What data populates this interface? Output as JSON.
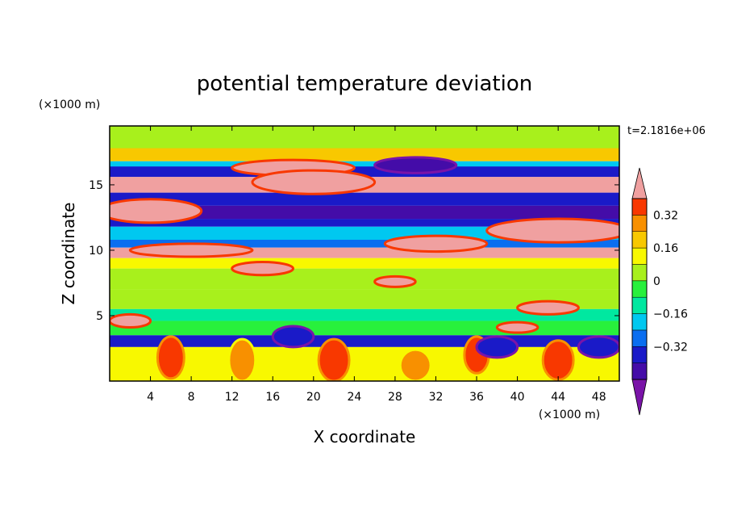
{
  "chart_data": {
    "type": "heatmap",
    "title": "potential temperature deviation",
    "xlabel": "X coordinate",
    "ylabel": "Z coordinate",
    "x_unit": "(×1000 m)",
    "y_unit": "(×1000 m)",
    "time_label": "t=2.1816e+06",
    "xlim": [
      0,
      50
    ],
    "ylim": [
      0,
      19.5
    ],
    "x_ticks": [
      4,
      8,
      12,
      16,
      20,
      24,
      28,
      32,
      36,
      40,
      44,
      48
    ],
    "y_ticks": [
      5,
      10,
      15
    ],
    "colorbar": {
      "levels": [
        -0.48,
        -0.4,
        -0.32,
        -0.24,
        -0.16,
        -0.08,
        0,
        0.08,
        0.16,
        0.24,
        0.32,
        0.4
      ],
      "tick_labels": [
        "0.32",
        "0.16",
        "0",
        "−0.16",
        "−0.32"
      ],
      "tick_values": [
        0.32,
        0.16,
        0,
        -0.16,
        -0.32
      ],
      "colors": [
        "#7a14a8",
        "#440ca8",
        "#1a1ac8",
        "#0a6ef0",
        "#00c8f0",
        "#00e8a0",
        "#28f03c",
        "#a8f01c",
        "#f8f800",
        "#f8c800",
        "#f89000",
        "#f83800",
        "#f0a0a0"
      ],
      "extend": "both"
    },
    "bands": [
      {
        "z": [
          17.5,
          19.5
        ],
        "value": 0.04
      },
      {
        "z": [
          16.8,
          17.8
        ],
        "value": 0.16
      },
      {
        "z": [
          16.0,
          16.8
        ],
        "value": -0.24
      },
      {
        "z": [
          15.6,
          16.4
        ],
        "value": -0.4
      },
      {
        "z": [
          14.4,
          15.6
        ],
        "value": 0.44
      },
      {
        "z": [
          13.4,
          14.4
        ],
        "value": -0.36
      },
      {
        "z": [
          12.4,
          13.4
        ],
        "value": -0.44
      },
      {
        "z": [
          11.8,
          12.4
        ],
        "value": -0.36
      },
      {
        "z": [
          10.8,
          11.8
        ],
        "value": -0.24
      },
      {
        "z": [
          10.2,
          10.8
        ],
        "value": -0.32
      },
      {
        "z": [
          9.4,
          10.2
        ],
        "value": 0.44
      },
      {
        "z": [
          8.6,
          9.4
        ],
        "value": 0.08
      },
      {
        "z": [
          7.0,
          8.6
        ],
        "value": 0.04
      },
      {
        "z": [
          5.5,
          7.0
        ],
        "value": 0.0
      },
      {
        "z": [
          4.6,
          5.5
        ],
        "value": -0.12
      },
      {
        "z": [
          3.5,
          4.6
        ],
        "value": -0.04
      },
      {
        "z": [
          2.6,
          3.5
        ],
        "value": -0.36
      },
      {
        "z": [
          0,
          2.6
        ],
        "value": 0.08
      }
    ],
    "blobs": [
      {
        "x": 18,
        "z": 16.3,
        "rx": 6,
        "rz": 0.6,
        "value": 0.44
      },
      {
        "x": 30,
        "z": 16.5,
        "rx": 4,
        "rz": 0.6,
        "value": -0.44
      },
      {
        "x": 20,
        "z": 15.2,
        "rx": 6,
        "rz": 0.9,
        "value": 0.44
      },
      {
        "x": 4,
        "z": 13.0,
        "rx": 5,
        "rz": 0.9,
        "value": 0.44
      },
      {
        "x": 44,
        "z": 11.5,
        "rx": 7,
        "rz": 0.9,
        "value": 0.44
      },
      {
        "x": 32,
        "z": 10.5,
        "rx": 5,
        "rz": 0.6,
        "value": 0.44
      },
      {
        "x": 8,
        "z": 10.0,
        "rx": 6,
        "rz": 0.5,
        "value": 0.44
      },
      {
        "x": 15,
        "z": 8.6,
        "rx": 3,
        "rz": 0.5,
        "value": 0.44
      },
      {
        "x": 28,
        "z": 7.6,
        "rx": 2,
        "rz": 0.4,
        "value": 0.44
      },
      {
        "x": 43,
        "z": 5.6,
        "rx": 3,
        "rz": 0.5,
        "value": 0.44
      },
      {
        "x": 40,
        "z": 4.1,
        "rx": 2,
        "rz": 0.4,
        "value": 0.44
      },
      {
        "x": 2,
        "z": 4.6,
        "rx": 2,
        "rz": 0.5,
        "value": 0.44
      },
      {
        "x": 6,
        "z": 1.8,
        "rx": 1.3,
        "rz": 1.6,
        "value": 0.32
      },
      {
        "x": 13,
        "z": 1.6,
        "rx": 1.3,
        "rz": 1.6,
        "value": 0.24
      },
      {
        "x": 22,
        "z": 1.6,
        "rx": 1.5,
        "rz": 1.6,
        "value": 0.32
      },
      {
        "x": 30,
        "z": 1.2,
        "rx": 1.5,
        "rz": 1.2,
        "value": 0.24
      },
      {
        "x": 36,
        "z": 2.0,
        "rx": 1.2,
        "rz": 1.4,
        "value": 0.32
      },
      {
        "x": 44,
        "z": 1.6,
        "rx": 1.5,
        "rz": 1.5,
        "value": 0.32
      },
      {
        "x": 18,
        "z": 3.4,
        "rx": 2,
        "rz": 0.8,
        "value": -0.4
      },
      {
        "x": 38,
        "z": 2.6,
        "rx": 2,
        "rz": 0.8,
        "value": -0.4
      },
      {
        "x": 48,
        "z": 2.6,
        "rx": 2,
        "rz": 0.8,
        "value": -0.4
      }
    ]
  }
}
